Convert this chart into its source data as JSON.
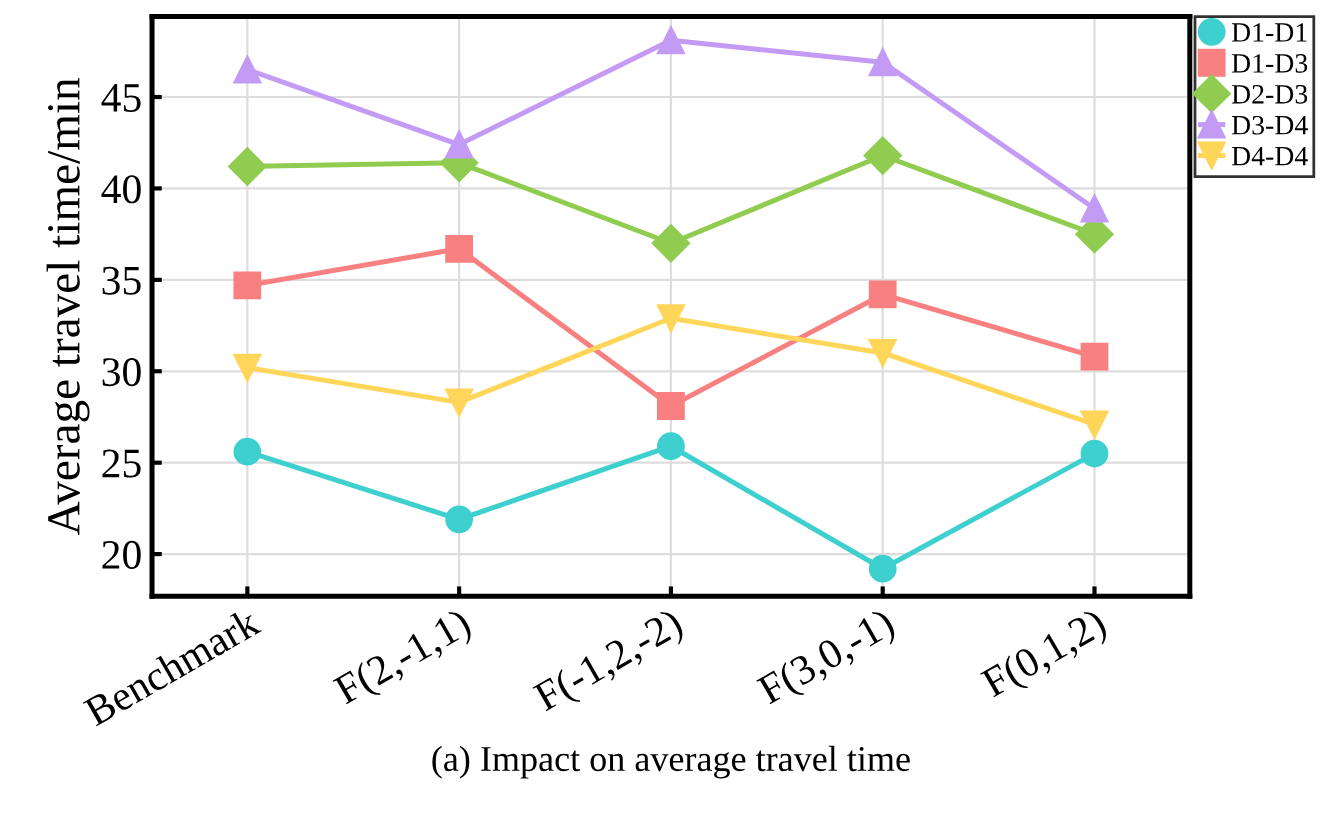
{
  "chart_data": {
    "type": "line",
    "ylabel": "Average travel time/min",
    "xlabel": "(a) Impact on average travel time",
    "categories": [
      "Benchmark",
      "F(2,-1,1)",
      "F(-1,2,-2)",
      "F(3,0,-1)",
      "F(0,1,2)"
    ],
    "series": [
      {
        "name": "D1-D1",
        "color": "#3ecfcf",
        "marker": "circle",
        "values": [
          25.6,
          21.9,
          25.9,
          19.2,
          25.5
        ]
      },
      {
        "name": "D1-D3",
        "color": "#f88080",
        "marker": "square",
        "values": [
          34.7,
          36.7,
          28.1,
          34.2,
          30.8
        ]
      },
      {
        "name": "D2-D3",
        "color": "#8fcc4f",
        "marker": "diamond",
        "values": [
          41.2,
          41.4,
          37.0,
          41.8,
          37.5
        ]
      },
      {
        "name": "D3-D4",
        "color": "#c39bf5",
        "marker": "triangle",
        "values": [
          46.5,
          42.4,
          48.1,
          46.9,
          38.9
        ]
      },
      {
        "name": "D4-D4",
        "color": "#ffd55a",
        "marker": "triangle_down",
        "values": [
          30.2,
          28.3,
          32.9,
          31.0,
          27.1
        ]
      }
    ],
    "ylim": [
      17.7,
      49.4
    ],
    "yticks": [
      20,
      25,
      30,
      35,
      40,
      45
    ],
    "grid": true,
    "legend": "right",
    "line_style": "solid"
  }
}
